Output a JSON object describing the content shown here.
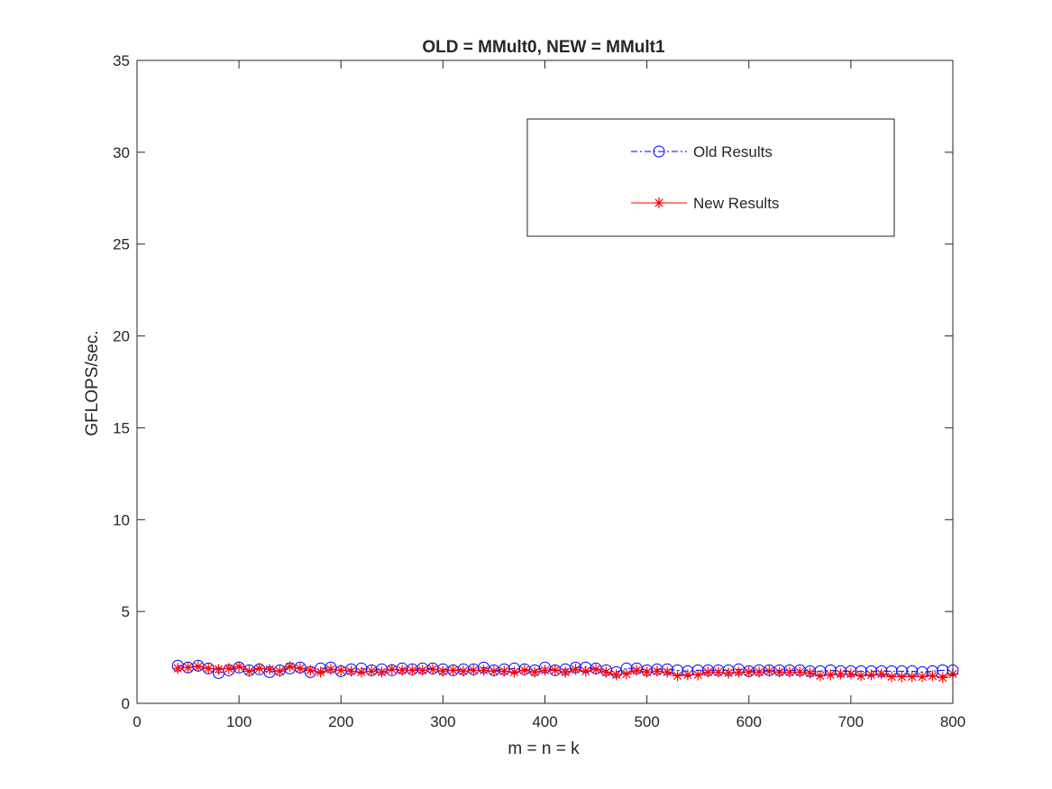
{
  "chart_data": {
    "type": "line",
    "title": "OLD = MMult0, NEW = MMult1",
    "xlabel": "m = n = k",
    "ylabel": "GFLOPS/sec.",
    "xlim": [
      0,
      800
    ],
    "ylim": [
      0,
      35
    ],
    "xticks": [
      0,
      100,
      200,
      300,
      400,
      500,
      600,
      700,
      800
    ],
    "yticks": [
      0,
      5,
      10,
      15,
      20,
      25,
      30,
      35
    ],
    "grid": false,
    "legend_position": "top-right",
    "x": [
      40,
      50,
      60,
      70,
      80,
      90,
      100,
      110,
      120,
      130,
      140,
      150,
      160,
      170,
      180,
      190,
      200,
      210,
      220,
      230,
      240,
      250,
      260,
      270,
      280,
      290,
      300,
      310,
      320,
      330,
      340,
      350,
      360,
      370,
      380,
      390,
      400,
      410,
      420,
      430,
      440,
      450,
      460,
      470,
      480,
      490,
      500,
      510,
      520,
      530,
      540,
      550,
      560,
      570,
      580,
      590,
      600,
      610,
      620,
      630,
      640,
      650,
      660,
      670,
      680,
      690,
      700,
      710,
      720,
      730,
      740,
      750,
      760,
      770,
      780,
      790,
      800
    ],
    "series": [
      {
        "name": "Old Results",
        "color": "#0000ff",
        "line_style": "dash-dot",
        "marker": "circle",
        "values": [
          2.05,
          1.95,
          2.05,
          1.9,
          1.65,
          1.8,
          1.95,
          1.8,
          1.85,
          1.7,
          1.8,
          1.9,
          1.95,
          1.7,
          1.9,
          1.95,
          1.75,
          1.85,
          1.9,
          1.8,
          1.85,
          1.8,
          1.9,
          1.85,
          1.9,
          1.9,
          1.85,
          1.8,
          1.85,
          1.85,
          1.95,
          1.8,
          1.85,
          1.9,
          1.85,
          1.8,
          1.95,
          1.8,
          1.85,
          1.95,
          1.95,
          1.9,
          1.8,
          1.7,
          1.9,
          1.9,
          1.8,
          1.85,
          1.85,
          1.8,
          1.75,
          1.8,
          1.8,
          1.8,
          1.8,
          1.85,
          1.75,
          1.8,
          1.8,
          1.8,
          1.8,
          1.8,
          1.75,
          1.75,
          1.8,
          1.75,
          1.75,
          1.75,
          1.75,
          1.75,
          1.75,
          1.75,
          1.75,
          1.7,
          1.75,
          1.8,
          1.8
        ]
      },
      {
        "name": "New Results",
        "color": "#ff0000",
        "line_style": "solid",
        "marker": "asterisk",
        "values": [
          1.9,
          1.95,
          2.0,
          1.9,
          1.85,
          1.9,
          2.0,
          1.75,
          1.9,
          1.85,
          1.75,
          2.0,
          1.9,
          1.8,
          1.7,
          1.85,
          1.8,
          1.75,
          1.7,
          1.75,
          1.7,
          1.85,
          1.8,
          1.8,
          1.8,
          1.85,
          1.75,
          1.8,
          1.75,
          1.8,
          1.8,
          1.75,
          1.75,
          1.7,
          1.8,
          1.7,
          1.8,
          1.8,
          1.7,
          1.85,
          1.75,
          1.85,
          1.7,
          1.55,
          1.6,
          1.8,
          1.7,
          1.75,
          1.7,
          1.5,
          1.55,
          1.55,
          1.7,
          1.7,
          1.65,
          1.7,
          1.7,
          1.7,
          1.75,
          1.7,
          1.7,
          1.7,
          1.65,
          1.5,
          1.55,
          1.6,
          1.6,
          1.5,
          1.55,
          1.6,
          1.45,
          1.45,
          1.45,
          1.45,
          1.5,
          1.4,
          1.6
        ]
      }
    ]
  }
}
